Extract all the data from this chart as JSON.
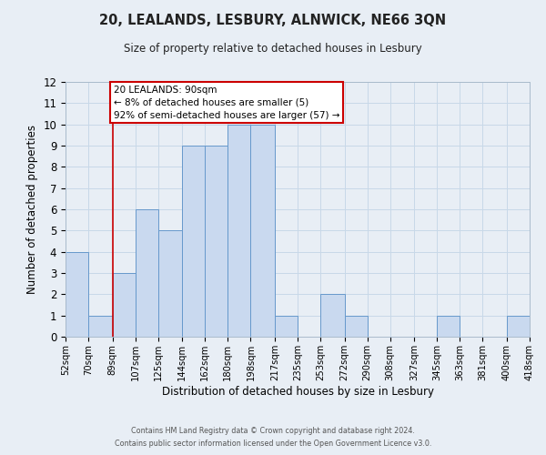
{
  "title_line1": "20, LEALANDS, LESBURY, ALNWICK, NE66 3QN",
  "title_line2": "Size of property relative to detached houses in Lesbury",
  "xlabel": "Distribution of detached houses by size in Lesbury",
  "ylabel": "Number of detached properties",
  "bin_edges": [
    52,
    70,
    89,
    107,
    125,
    144,
    162,
    180,
    198,
    217,
    235,
    253,
    272,
    290,
    308,
    327,
    345,
    363,
    381,
    400,
    418
  ],
  "bin_labels": [
    "52sqm",
    "70sqm",
    "89sqm",
    "107sqm",
    "125sqm",
    "144sqm",
    "162sqm",
    "180sqm",
    "198sqm",
    "217sqm",
    "235sqm",
    "253sqm",
    "272sqm",
    "290sqm",
    "308sqm",
    "327sqm",
    "345sqm",
    "363sqm",
    "381sqm",
    "400sqm",
    "418sqm"
  ],
  "counts": [
    4,
    1,
    3,
    6,
    5,
    9,
    9,
    10,
    10,
    1,
    0,
    2,
    1,
    0,
    0,
    0,
    1,
    0,
    0,
    1
  ],
  "bar_color": "#c9d9ef",
  "bar_edge_color": "#6699cc",
  "vline_x": 89,
  "vline_color": "#cc0000",
  "annotation_line1": "20 LEALANDS: 90sqm",
  "annotation_line2": "← 8% of detached houses are smaller (5)",
  "annotation_line3": "92% of semi-detached houses are larger (57) →",
  "annotation_box_color": "#ffffff",
  "annotation_box_edge_color": "#cc0000",
  "ylim": [
    0,
    12
  ],
  "yticks": [
    0,
    1,
    2,
    3,
    4,
    5,
    6,
    7,
    8,
    9,
    10,
    11,
    12
  ],
  "grid_color": "#c8d8e8",
  "background_color": "#e8eef5",
  "footer_line1": "Contains HM Land Registry data © Crown copyright and database right 2024.",
  "footer_line2": "Contains public sector information licensed under the Open Government Licence v3.0."
}
